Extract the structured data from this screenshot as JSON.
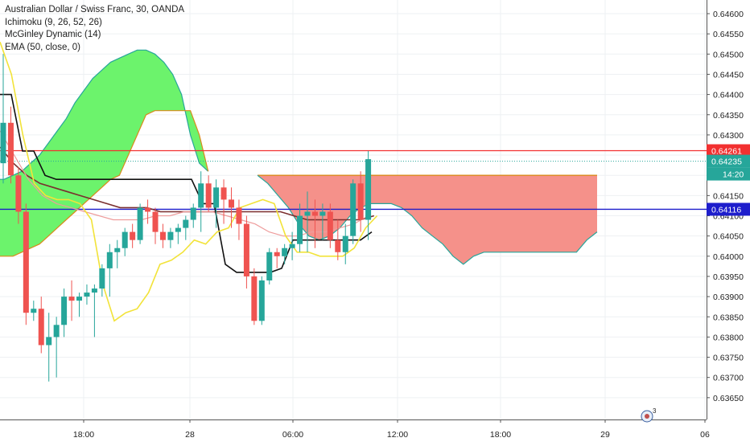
{
  "legend": {
    "symbol_line": "Australian Dollar / Swiss Franc, 30, OANDA",
    "ichimoku": "Ichimoku (9, 26, 52, 26)",
    "mcginley": "McGinley Dynamic (14)",
    "ema": "EMA (50, close, 0)"
  },
  "price_badges": {
    "red_line": "0.64261",
    "last_price": "0.64235",
    "countdown": "14:20",
    "blue_line": "0.64116"
  },
  "colors": {
    "up": "#26a69a",
    "down": "#ef5350",
    "cloud_bull": "#6cf36c",
    "cloud_bear": "#f5918a",
    "red_line": "#f23030",
    "blue_line": "#1e1ecc",
    "ema": "#7a2e2e",
    "mcginley": "#ee9c9c",
    "kijun": "#111111",
    "yellow": "#f2e33a"
  },
  "chart_data": {
    "type": "candlestick",
    "timeframe": "30",
    "x_tick_labels": [
      "18:00",
      "28",
      "06:00",
      "12:00",
      "18:00",
      "29",
      "06"
    ],
    "y_tick_labels": [
      "0.64600",
      "0.64550",
      "0.64500",
      "0.64450",
      "0.64400",
      "0.64350",
      "0.64300",
      "0.64250",
      "0.64200",
      "0.64150",
      "0.64100",
      "0.64050",
      "0.64000",
      "0.63950",
      "0.63900",
      "0.63850",
      "0.63800",
      "0.63750",
      "0.63700",
      "0.63650"
    ],
    "ylim": [
      0.6363,
      0.6463
    ],
    "horizontal_lines": [
      0.64261,
      0.64116
    ],
    "last_price": 0.64235,
    "candles": [
      {
        "o": 0.6423,
        "h": 0.645,
        "l": 0.6418,
        "c": 0.6433
      },
      {
        "o": 0.6433,
        "h": 0.6437,
        "l": 0.6418,
        "c": 0.642
      },
      {
        "o": 0.642,
        "h": 0.6422,
        "l": 0.6408,
        "c": 0.6411
      },
      {
        "o": 0.6411,
        "h": 0.6413,
        "l": 0.6383,
        "c": 0.6386
      },
      {
        "o": 0.6386,
        "h": 0.6389,
        "l": 0.6384,
        "c": 0.6387
      },
      {
        "o": 0.6387,
        "h": 0.639,
        "l": 0.6376,
        "c": 0.6378
      },
      {
        "o": 0.6378,
        "h": 0.6386,
        "l": 0.6369,
        "c": 0.638
      },
      {
        "o": 0.638,
        "h": 0.6385,
        "l": 0.637,
        "c": 0.6383
      },
      {
        "o": 0.6383,
        "h": 0.6392,
        "l": 0.638,
        "c": 0.639
      },
      {
        "o": 0.639,
        "h": 0.6394,
        "l": 0.6384,
        "c": 0.6389
      },
      {
        "o": 0.6389,
        "h": 0.6391,
        "l": 0.6385,
        "c": 0.639
      },
      {
        "o": 0.639,
        "h": 0.6393,
        "l": 0.6388,
        "c": 0.6391
      },
      {
        "o": 0.6391,
        "h": 0.6393,
        "l": 0.638,
        "c": 0.6392
      },
      {
        "o": 0.6392,
        "h": 0.6398,
        "l": 0.639,
        "c": 0.6397
      },
      {
        "o": 0.6397,
        "h": 0.6403,
        "l": 0.639,
        "c": 0.6401
      },
      {
        "o": 0.6401,
        "h": 0.6404,
        "l": 0.6397,
        "c": 0.6402
      },
      {
        "o": 0.6402,
        "h": 0.6407,
        "l": 0.64,
        "c": 0.6406
      },
      {
        "o": 0.6406,
        "h": 0.6408,
        "l": 0.6402,
        "c": 0.6404
      },
      {
        "o": 0.6404,
        "h": 0.6413,
        "l": 0.6403,
        "c": 0.6412
      },
      {
        "o": 0.6412,
        "h": 0.6414,
        "l": 0.6408,
        "c": 0.6411
      },
      {
        "o": 0.6411,
        "h": 0.6412,
        "l": 0.6403,
        "c": 0.6406
      },
      {
        "o": 0.6406,
        "h": 0.6408,
        "l": 0.6402,
        "c": 0.6404
      },
      {
        "o": 0.6404,
        "h": 0.6407,
        "l": 0.6402,
        "c": 0.6406
      },
      {
        "o": 0.6406,
        "h": 0.6408,
        "l": 0.6403,
        "c": 0.6407
      },
      {
        "o": 0.6407,
        "h": 0.641,
        "l": 0.6404,
        "c": 0.6409
      },
      {
        "o": 0.6409,
        "h": 0.6413,
        "l": 0.6407,
        "c": 0.6412
      },
      {
        "o": 0.6412,
        "h": 0.6421,
        "l": 0.6406,
        "c": 0.6418
      },
      {
        "o": 0.6418,
        "h": 0.642,
        "l": 0.6411,
        "c": 0.6412
      },
      {
        "o": 0.6412,
        "h": 0.6419,
        "l": 0.6407,
        "c": 0.6417
      },
      {
        "o": 0.6417,
        "h": 0.6419,
        "l": 0.6408,
        "c": 0.6414
      },
      {
        "o": 0.6414,
        "h": 0.6417,
        "l": 0.6407,
        "c": 0.6412
      },
      {
        "o": 0.6412,
        "h": 0.6414,
        "l": 0.6404,
        "c": 0.6408
      },
      {
        "o": 0.6408,
        "h": 0.641,
        "l": 0.6392,
        "c": 0.6395
      },
      {
        "o": 0.6395,
        "h": 0.6397,
        "l": 0.6383,
        "c": 0.6384
      },
      {
        "o": 0.6384,
        "h": 0.6395,
        "l": 0.6383,
        "c": 0.6394
      },
      {
        "o": 0.6394,
        "h": 0.6402,
        "l": 0.6393,
        "c": 0.6401
      },
      {
        "o": 0.6401,
        "h": 0.6402,
        "l": 0.6397,
        "c": 0.64
      },
      {
        "o": 0.64,
        "h": 0.6403,
        "l": 0.6398,
        "c": 0.6402
      },
      {
        "o": 0.6402,
        "h": 0.6406,
        "l": 0.6399,
        "c": 0.6403
      },
      {
        "o": 0.6403,
        "h": 0.6413,
        "l": 0.6401,
        "c": 0.641
      },
      {
        "o": 0.641,
        "h": 0.6416,
        "l": 0.6401,
        "c": 0.6411
      },
      {
        "o": 0.6411,
        "h": 0.6414,
        "l": 0.6402,
        "c": 0.641
      },
      {
        "o": 0.641,
        "h": 0.6413,
        "l": 0.6404,
        "c": 0.6411
      },
      {
        "o": 0.6411,
        "h": 0.6413,
        "l": 0.6402,
        "c": 0.6404
      },
      {
        "o": 0.6404,
        "h": 0.6409,
        "l": 0.6399,
        "c": 0.6401
      },
      {
        "o": 0.6401,
        "h": 0.6408,
        "l": 0.6398,
        "c": 0.6405
      },
      {
        "o": 0.6405,
        "h": 0.6419,
        "l": 0.6403,
        "c": 0.6418
      },
      {
        "o": 0.6418,
        "h": 0.6421,
        "l": 0.6406,
        "c": 0.6409
      },
      {
        "o": 0.6409,
        "h": 0.6426,
        "l": 0.6404,
        "c": 0.6424
      }
    ],
    "cloud_upper": [
      0.6423,
      0.6423,
      0.6421,
      0.6419,
      0.6418,
      0.6418,
      0.6418,
      0.6418,
      0.6419,
      0.642,
      0.6422,
      0.6428,
      0.6436,
      0.6441,
      0.6443,
      0.6443,
      0.6444,
      0.6447,
      0.6447,
      0.6438,
      0.6423,
      0.642,
      0.642,
      0.642,
      0.642,
      0.642,
      0.642,
      0.642,
      0.642,
      0.642,
      0.642,
      0.642,
      0.642,
      0.642,
      0.642,
      0.642,
      0.642,
      0.642,
      0.642,
      0.642,
      0.642,
      0.642,
      0.642,
      0.642,
      0.642,
      0.642,
      0.642,
      0.642,
      0.642,
      0.642,
      0.642,
      0.642,
      0.642,
      0.642,
      0.642,
      0.642,
      0.642,
      0.642,
      0.642,
      0.642,
      0.642,
      0.642
    ],
    "cloud_lower": [
      0.6398,
      0.6398,
      0.64,
      0.6402,
      0.6404,
      0.6406,
      0.6408,
      0.641,
      0.6412,
      0.6414,
      0.6416,
      0.6426,
      0.6431,
      0.6436,
      0.6436,
      0.6436,
      0.6436,
      0.6436,
      0.6436,
      0.6433,
      0.6426,
      0.642,
      0.6417,
      0.641,
      0.6404,
      0.6403,
      0.6403,
      0.6405,
      0.6408,
      0.6413,
      0.6414,
      0.6413,
      0.6413,
      0.6413,
      0.6409,
      0.6405,
      0.6403,
      0.6401,
      0.6399,
      0.6401,
      0.6402,
      0.6402,
      0.6401,
      0.6402,
      0.6402,
      0.6405,
      0.6409
    ],
    "kijun": [
      0.644,
      0.644,
      0.6426,
      0.6426,
      0.642,
      0.6419,
      0.6419,
      0.6419,
      0.6419,
      0.6419,
      0.6419,
      0.6419,
      0.6419,
      0.6419,
      0.6419,
      0.6419,
      0.6419,
      0.6419,
      0.6413,
      0.6413,
      0.6398,
      0.6396,
      0.6396,
      0.6396,
      0.6396,
      0.6397,
      0.6404,
      0.6404,
      0.6404,
      0.6404,
      0.6404,
      0.6404,
      0.6404,
      0.6406
    ],
    "yellow_line": [
      0.6453,
      0.6445,
      0.643,
      0.6418,
      0.6415,
      0.6414,
      0.6414,
      0.6413,
      0.6409,
      0.6393,
      0.6384,
      0.6386,
      0.6387,
      0.6391,
      0.6398,
      0.6399,
      0.6401,
      0.6404,
      0.6403,
      0.6406,
      0.6407,
      0.6412,
      0.6413,
      0.6414,
      0.6413,
      0.6405,
      0.6401,
      0.6401,
      0.64,
      0.64,
      0.64,
      0.6402,
      0.6407,
      0.641
    ],
    "ema": [
      0.6427,
      0.6423,
      0.642,
      0.6418,
      0.6417,
      0.6416,
      0.6415,
      0.6414,
      0.6413,
      0.6412,
      0.6412,
      0.6412,
      0.6411,
      0.6411,
      0.6411,
      0.6411,
      0.6411,
      0.6411,
      0.6411,
      0.6411,
      0.6411,
      0.6411,
      0.641,
      0.6409,
      0.6409,
      0.6409,
      0.6409,
      0.6409,
      0.641
    ],
    "mcginley": [
      0.6431,
      0.6425,
      0.6419,
      0.6415,
      0.6413,
      0.6412,
      0.6411,
      0.641,
      0.6409,
      0.6409,
      0.6409,
      0.641,
      0.641,
      0.6411,
      0.6411,
      0.6411,
      0.641,
      0.6409,
      0.6408,
      0.6406,
      0.6405,
      0.6405,
      0.6406,
      0.6406,
      0.6407,
      0.6408,
      0.641
    ]
  }
}
